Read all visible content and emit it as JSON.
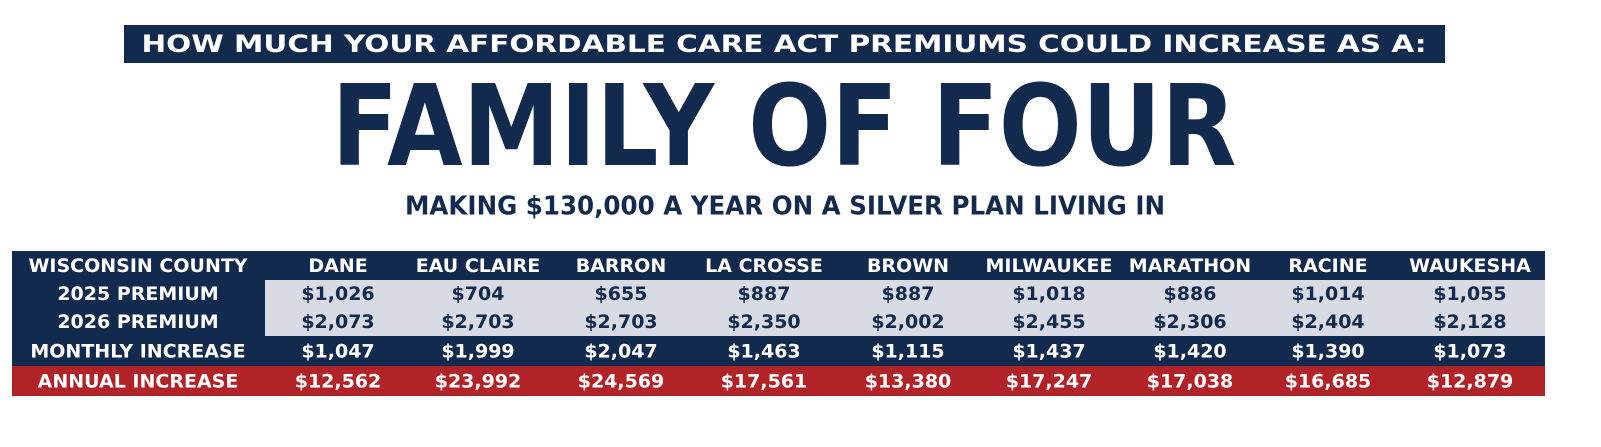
{
  "header": {
    "banner": "HOW MUCH YOUR AFFORDABLE CARE ACT PREMIUMS COULD INCREASE AS A:",
    "title": "FAMILY OF FOUR",
    "subtitle": "MAKING $130,000 A YEAR ON A SILVER PLAN LIVING IN"
  },
  "table": {
    "columns": [
      "WISCONSIN COUNTY",
      "DANE",
      "EAU CLAIRE",
      "BARRON",
      "LA CROSSE",
      "BROWN",
      "MILWAUKEE",
      "MARATHON",
      "RACINE",
      "WAUKESHA"
    ],
    "rows": [
      [
        "2025 PREMIUM",
        "$1,026",
        "$704",
        "$655",
        "$887",
        "$887",
        "$1,018",
        "$886",
        "$1,014",
        "$1,055"
      ],
      [
        "2026 PREMIUM",
        "$2,073",
        "$2,703",
        "$2,703",
        "$2,350",
        "$2,002",
        "$2,455",
        "$2,306",
        "$2,404",
        "$2,128"
      ],
      [
        "MONTHLY INCREASE",
        "$1,047",
        "$1,999",
        "$2,047",
        "$1,463",
        "$1,115",
        "$1,437",
        "$1,420",
        "$1,390",
        "$1,073"
      ],
      [
        "ANNUAL INCREASE",
        "$12,562",
        "$23,992",
        "$24,569",
        "$17,561",
        "$13,380",
        "$17,247",
        "$17,038",
        "$16,685",
        "$12,879"
      ]
    ]
  }
}
